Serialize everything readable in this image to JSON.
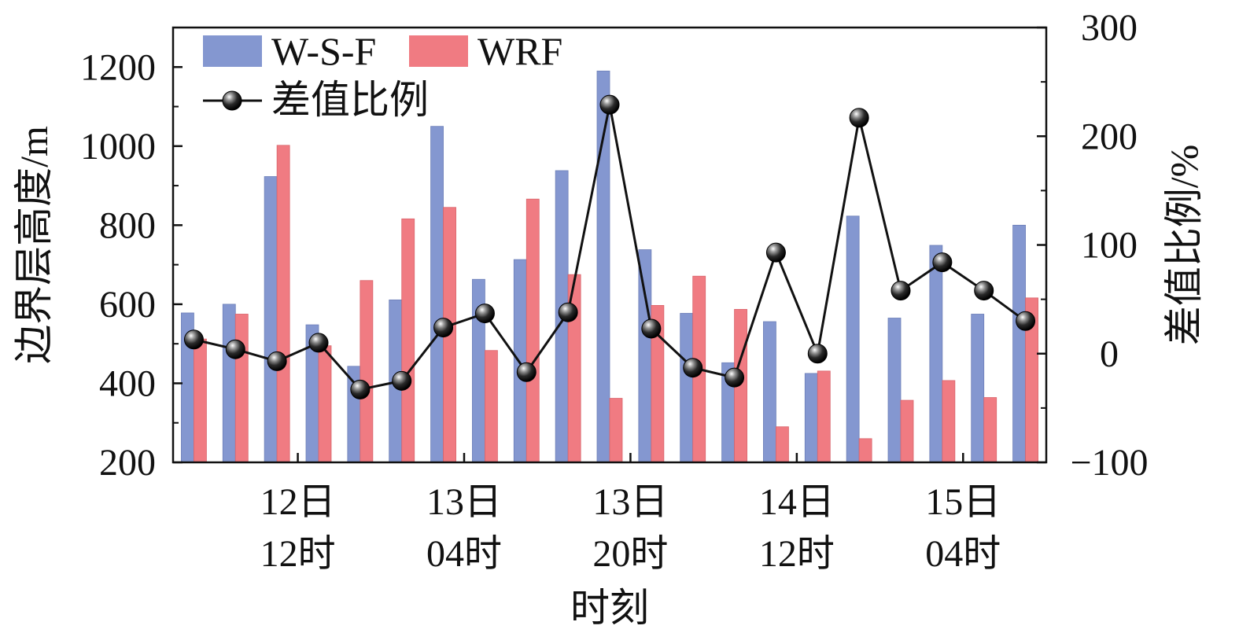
{
  "chart_data": {
    "type": "bar",
    "xlabel": "时刻",
    "ylabel": "边界层高度/m",
    "y2label": "差值比例/%",
    "ylim": [
      200,
      1300
    ],
    "y2lim": [
      -100,
      300
    ],
    "yticks": [
      200,
      400,
      600,
      800,
      1000,
      1200
    ],
    "y2ticks": [
      -100,
      0,
      100,
      200,
      300
    ],
    "y2tick_labels": [
      "−100",
      "0",
      "100",
      "200",
      "300"
    ],
    "x_tick_labels": [
      {
        "index": 2,
        "line1": "12日",
        "line2": "12时"
      },
      {
        "index": 6,
        "line1": "13日",
        "line2": "04时"
      },
      {
        "index": 10,
        "line1": "13日",
        "line2": "20时"
      },
      {
        "index": 14,
        "line1": "14日",
        "line2": "12时"
      },
      {
        "index": 18,
        "line1": "15日",
        "line2": "04时"
      }
    ],
    "legend_position": "top-left",
    "series": [
      {
        "name": "W-S-F",
        "kind": "bar",
        "color": "#8497d0",
        "values": [
          578,
          600,
          923,
          548,
          443,
          611,
          1050,
          663,
          713,
          938,
          1190,
          738,
          577,
          452,
          556,
          425,
          823,
          565,
          749,
          575,
          800
        ]
      },
      {
        "name": "WRF",
        "kind": "bar",
        "color": "#f07b82",
        "values": [
          512,
          575,
          1002,
          495,
          660,
          816,
          845,
          483,
          866,
          675,
          362,
          597,
          671,
          587,
          290,
          431,
          260,
          357,
          407,
          364,
          616
        ]
      },
      {
        "name": "差值比例",
        "kind": "line",
        "axis": "y2",
        "color": "#111111",
        "values": [
          13,
          4,
          -7,
          10,
          -33,
          -25,
          24,
          37,
          -17,
          38,
          229,
          23,
          -13,
          -22,
          93,
          0,
          217,
          58,
          84,
          58,
          30
        ]
      }
    ]
  }
}
